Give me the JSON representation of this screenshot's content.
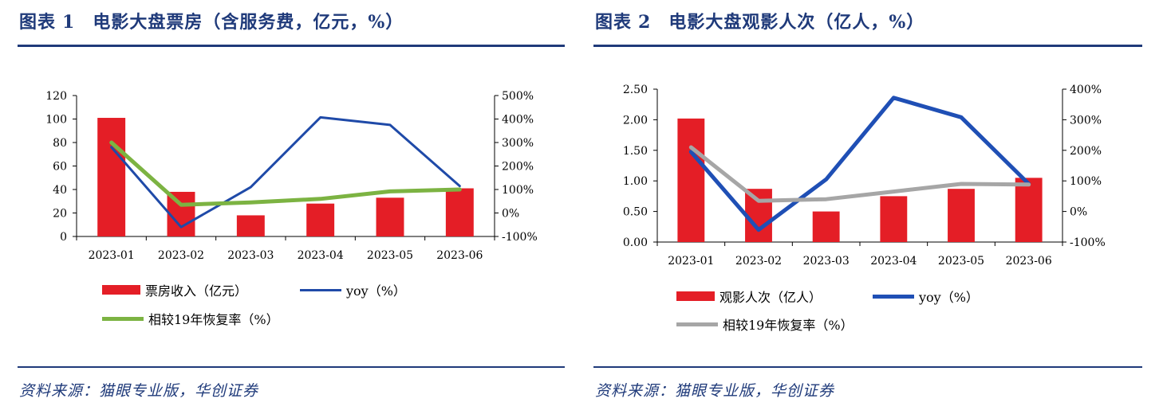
{
  "panels": [
    {
      "title_prefix": "图表",
      "title_num": "1",
      "title_text": "电影大盘票房（含服务费，亿元，%）",
      "source": "资料来源：猫眼专业版，华创证券",
      "legend": {
        "bar_label": "票房收入（亿元）",
        "yoy_label": "yoy（%）",
        "recovery_label": "相较19年恢复率（%）"
      }
    },
    {
      "title_prefix": "图表",
      "title_num": "2",
      "title_text": "电影大盘观影人次（亿人，%）",
      "source": "资料来源：猫眼专业版，华创证券",
      "legend": {
        "bar_label": "观影人次（亿人）",
        "yoy_label": "yoy（%）",
        "recovery_label": "相较19年恢复率（%）"
      }
    }
  ],
  "colors": {
    "accent": "#1f3a7a",
    "bar": "#e41e26",
    "yoy1": "#1f4aa8",
    "recovery1": "#7cb342",
    "yoy2": "#1f4fb5",
    "recovery2": "#a6a6a6"
  },
  "chart_data": [
    {
      "type": "bar+line",
      "title": "电影大盘票房（含服务费，亿元，%）",
      "categories": [
        "2023-01",
        "2023-02",
        "2023-03",
        "2023-04",
        "2023-05",
        "2023-06"
      ],
      "bar_series": {
        "name": "票房收入（亿元）",
        "values": [
          101,
          38,
          18,
          28,
          33,
          41
        ]
      },
      "line_series": [
        {
          "name": "yoy（%）",
          "values": [
            280,
            -60,
            110,
            407,
            375,
            115
          ]
        },
        {
          "name": "相较19年恢复率（%）",
          "values": [
            300,
            35,
            45,
            60,
            92,
            100
          ]
        }
      ],
      "y_left": {
        "min": 0,
        "max": 120,
        "step": 20,
        "ticks": [
          "0",
          "20",
          "40",
          "60",
          "80",
          "100",
          "120"
        ]
      },
      "y_right": {
        "min": -100,
        "max": 500,
        "step": 100,
        "ticks": [
          "-100%",
          "0%",
          "100%",
          "200%",
          "300%",
          "400%",
          "500%"
        ]
      }
    },
    {
      "type": "bar+line",
      "title": "电影大盘观影人次（亿人，%）",
      "categories": [
        "2023-01",
        "2023-02",
        "2023-03",
        "2023-04",
        "2023-05",
        "2023-06"
      ],
      "bar_series": {
        "name": "观影人次（亿人）",
        "values": [
          2.02,
          0.87,
          0.5,
          0.75,
          0.87,
          1.05
        ]
      },
      "line_series": [
        {
          "name": "yoy（%）",
          "values": [
            195,
            -60,
            105,
            372,
            308,
            90
          ]
        },
        {
          "name": "相较19年恢复率（%）",
          "values": [
            210,
            35,
            40,
            65,
            90,
            88
          ]
        }
      ],
      "y_left": {
        "min": 0,
        "max": 2.5,
        "step": 0.5,
        "ticks": [
          "0.00",
          "0.50",
          "1.00",
          "1.50",
          "2.00",
          "2.50"
        ]
      },
      "y_right": {
        "min": -100,
        "max": 400,
        "step": 100,
        "ticks": [
          "-100%",
          "0%",
          "100%",
          "200%",
          "300%",
          "400%"
        ]
      }
    }
  ]
}
